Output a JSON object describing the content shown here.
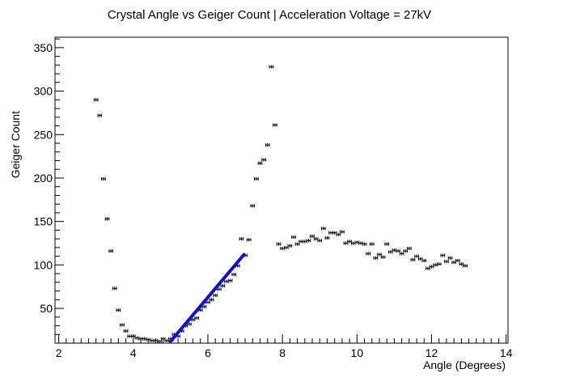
{
  "chart_data": {
    "type": "scatter",
    "title": "Crystal Angle vs Geiger Count | Acceleration Voltage = 27kV",
    "xlabel": "Angle (Degrees)",
    "ylabel": "Geiger Count",
    "xlim": [
      1.9,
      14.05
    ],
    "ylim": [
      10,
      362
    ],
    "x_ticks": [
      2,
      4,
      6,
      8,
      10,
      12,
      14
    ],
    "y_ticks": [
      50,
      100,
      150,
      200,
      250,
      300,
      350
    ],
    "grid": false,
    "error_bars": {
      "x": 0.1,
      "y": 2
    },
    "series": [
      {
        "points": [
          [
            3.0,
            290
          ],
          [
            3.1,
            272
          ],
          [
            3.2,
            199
          ],
          [
            3.3,
            153
          ],
          [
            3.4,
            116
          ],
          [
            3.5,
            73
          ],
          [
            3.6,
            48
          ],
          [
            3.7,
            31
          ],
          [
            3.8,
            24
          ],
          [
            3.9,
            18
          ],
          [
            4.0,
            18
          ],
          [
            4.1,
            16
          ],
          [
            4.2,
            15
          ],
          [
            4.3,
            15
          ],
          [
            4.4,
            14
          ],
          [
            4.5,
            13
          ],
          [
            4.6,
            13
          ],
          [
            4.7,
            12
          ],
          [
            4.8,
            15
          ],
          [
            4.9,
            13
          ],
          [
            5.0,
            15
          ],
          [
            5.1,
            20
          ],
          [
            5.2,
            18
          ],
          [
            5.3,
            24
          ],
          [
            5.4,
            30
          ],
          [
            5.5,
            32
          ],
          [
            5.6,
            37
          ],
          [
            5.7,
            39
          ],
          [
            5.8,
            48
          ],
          [
            5.9,
            52
          ],
          [
            6.0,
            57
          ],
          [
            6.1,
            60
          ],
          [
            6.2,
            65
          ],
          [
            6.3,
            72
          ],
          [
            6.4,
            76
          ],
          [
            6.5,
            81
          ],
          [
            6.6,
            82
          ],
          [
            6.7,
            89
          ],
          [
            6.8,
            99
          ],
          [
            6.9,
            130
          ],
          [
            7.0,
            111
          ],
          [
            7.1,
            129
          ],
          [
            7.2,
            168
          ],
          [
            7.3,
            199
          ],
          [
            7.4,
            217
          ],
          [
            7.5,
            221
          ],
          [
            7.6,
            238
          ],
          [
            7.7,
            328
          ],
          [
            7.8,
            261
          ],
          [
            7.9,
            124
          ],
          [
            8.0,
            119
          ],
          [
            8.1,
            120
          ],
          [
            8.2,
            122
          ],
          [
            8.3,
            132
          ],
          [
            8.4,
            124
          ],
          [
            8.5,
            127
          ],
          [
            8.6,
            127
          ],
          [
            8.7,
            128
          ],
          [
            8.8,
            133
          ],
          [
            8.9,
            130
          ],
          [
            9.0,
            128
          ],
          [
            9.1,
            142
          ],
          [
            9.2,
            131
          ],
          [
            9.3,
            137
          ],
          [
            9.4,
            137
          ],
          [
            9.5,
            135
          ],
          [
            9.6,
            138
          ],
          [
            9.7,
            125
          ],
          [
            9.8,
            127
          ],
          [
            9.9,
            125
          ],
          [
            10.0,
            126
          ],
          [
            10.1,
            125
          ],
          [
            10.2,
            124
          ],
          [
            10.3,
            113
          ],
          [
            10.4,
            124
          ],
          [
            10.5,
            108
          ],
          [
            10.6,
            112
          ],
          [
            10.7,
            109
          ],
          [
            10.8,
            124
          ],
          [
            10.9,
            115
          ],
          [
            11.0,
            117
          ],
          [
            11.1,
            116
          ],
          [
            11.2,
            113
          ],
          [
            11.3,
            116
          ],
          [
            11.4,
            119
          ],
          [
            11.5,
            106
          ],
          [
            11.6,
            110
          ],
          [
            11.7,
            107
          ],
          [
            11.8,
            105
          ],
          [
            11.9,
            96
          ],
          [
            12.0,
            98
          ],
          [
            12.1,
            100
          ],
          [
            12.2,
            101
          ],
          [
            12.3,
            111
          ],
          [
            12.4,
            104
          ],
          [
            12.5,
            108
          ],
          [
            12.6,
            103
          ],
          [
            12.7,
            105
          ],
          [
            12.8,
            101
          ],
          [
            12.9,
            99
          ]
        ],
        "color": "#000000"
      }
    ],
    "fit_line": {
      "color": "#1010cc",
      "x_range": [
        5.0,
        6.97
      ],
      "y_range": [
        12,
        112
      ]
    }
  }
}
